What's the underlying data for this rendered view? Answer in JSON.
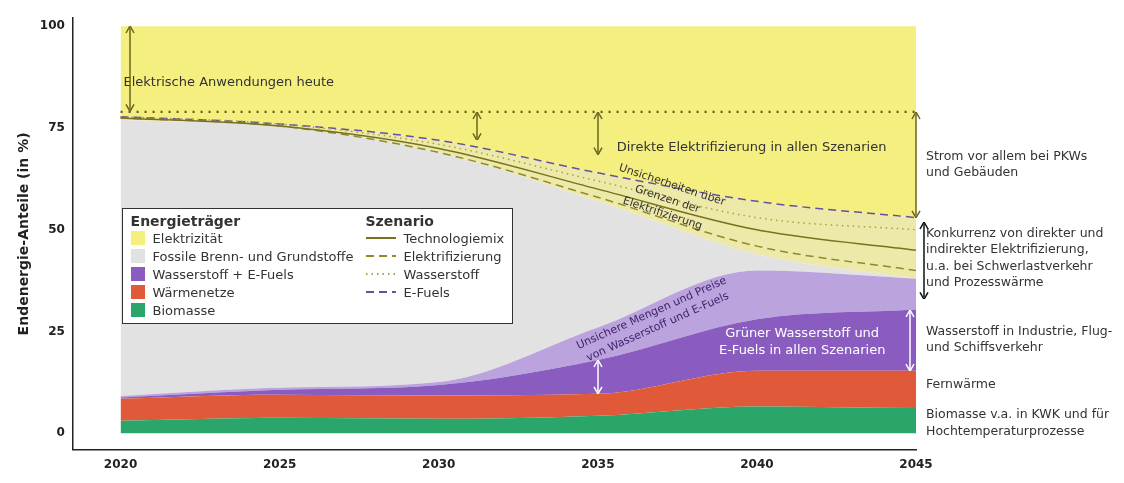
{
  "chart_data": {
    "type": "area",
    "stacked": true,
    "ylabel": "Endenergie-Anteile (in %)",
    "legend_title": "Energieträger",
    "x": [
      2020,
      2025,
      2030,
      2035,
      2040,
      2045
    ],
    "xlim": [
      2018.5,
      2045
    ],
    "xticks": [
      2020,
      2025,
      2030,
      2035,
      2040,
      2045
    ],
    "ylim": [
      -4,
      102
    ],
    "yticks": [
      0,
      25,
      50,
      75,
      100
    ],
    "grid": false,
    "legend": "left",
    "marker": "none",
    "series": [
      {
        "name": "Biomasse",
        "color": "#2aa66a",
        "values": [
          3.1,
          3.8,
          3.6,
          4.3,
          6.6,
          6.2
        ]
      },
      {
        "name": "Wärmenetze",
        "color": "#e05a3a",
        "values": [
          5.4,
          5.7,
          5.7,
          5.4,
          8.8,
          9.2
        ]
      },
      {
        "name": "Wasserstoff + E-Fuels",
        "color": "#8a5cc0",
        "values": [
          0.3,
          1.2,
          2.6,
          8.3,
          12.6,
          15.0
        ]
      },
      {
        "color": "#bba3dd",
        "values": [
          0.4,
          0.5,
          0.7,
          8,
          12,
          7.6
        ]
      },
      {
        "name": "Fossile Brenn- und Grundstoffe",
        "color": "#e2e2e2",
        "values": [
          67.8,
          64.3,
          56.4,
          31,
          4,
          0
        ]
      },
      {
        "color": "#ede9a9",
        "values": [
          1,
          0.5,
          3,
          7,
          13,
          15
        ]
      },
      {
        "name": "Elektrizität",
        "color": "#f4ef7e",
        "values": [
          22,
          24,
          28,
          36,
          43,
          47
        ]
      },
      {
        "name": "Technologiemix",
        "type": "line",
        "color": "#77721e",
        "line_style": "solid",
        "values": [
          77.5,
          75.5,
          70,
          60,
          50,
          45
        ]
      },
      {
        "name": "Elektrifizierung",
        "type": "line",
        "color": "#8f8a2a",
        "line_style": "dashed",
        "values": [
          77.5,
          75.5,
          69,
          58,
          46,
          40
        ]
      },
      {
        "name": "Wasserstoff",
        "type": "line",
        "color": "#a9a33a",
        "line_style": "dotted",
        "values": [
          77.8,
          76,
          71,
          62,
          53,
          50
        ]
      },
      {
        "name": "E-Fuels",
        "type": "line",
        "color": "#6a4fa0",
        "line_style": "dashed",
        "values": [
          77.8,
          76,
          72,
          64,
          57,
          53
        ]
      }
    ],
    "ref_lines": [
      {
        "axis": "y",
        "value": 79,
        "color": "#5f5a18",
        "line_style": "dotted"
      }
    ],
    "annotations": [
      "Elektrische Anwendungen heute",
      "Direkte Elektrifizierung in allen Szenarien",
      "Unsicherheiten über Grenzen der Elektrifizierung",
      "Unsichere Mengen und Preise von Wasserstoff und E-Fuels",
      "Grüner Wasserstoff und E-Fuels in allen Szenarien",
      "Strom vor allem bei PKWs und Gebäuden",
      "Konkurrenz von direkter und indirekter Elektrifizierung, u.a. bei Schwerlastverkehr und Prozesswärme",
      "Wasserstoff in Industrie, Flug- und Schiffsverkehr",
      "Fernwärme",
      "Biomasse v.a. in KWK und für Hochtemperaturprozesse",
      "Szenario"
    ]
  }
}
